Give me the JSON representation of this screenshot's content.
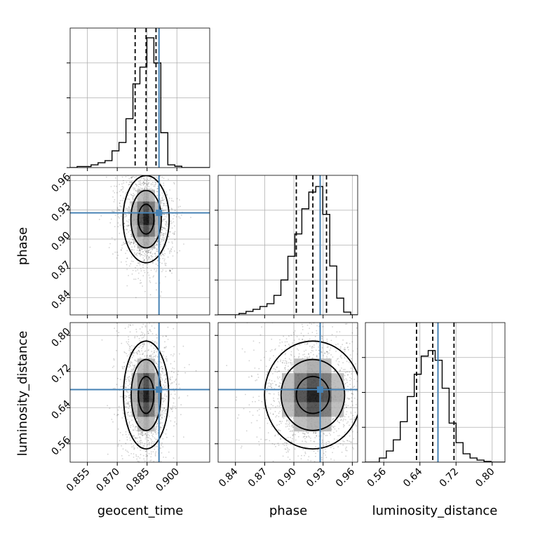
{
  "chart_data": {
    "type": "corner",
    "colors": {
      "line": "#000000",
      "truth": "#4682b4",
      "grid": "#b0b0b0"
    },
    "parameters": [
      "geocent_time",
      "phase",
      "luminosity_distance"
    ],
    "truths": {
      "geocent_time": 0.891,
      "phase": 0.927,
      "luminosity_distance": 0.68
    },
    "ranges": {
      "geocent_time": [
        0.8463,
        0.9165
      ],
      "phase": [
        0.8222,
        0.9655
      ],
      "luminosity_distance": [
        0.5193,
        0.8283
      ]
    },
    "ticks": {
      "geocent_time": {
        "values": [
          0.855,
          0.87,
          0.885,
          0.9
        ],
        "labels": [
          "0.855",
          "0.870",
          "0.885",
          "0.900"
        ]
      },
      "phase": {
        "values": [
          0.84,
          0.87,
          0.9,
          0.93,
          0.96
        ],
        "labels": [
          "0.84",
          "0.87",
          "0.90",
          "0.93",
          "0.96"
        ]
      },
      "luminosity_distance": {
        "values": [
          0.56,
          0.64,
          0.72,
          0.8
        ],
        "labels": [
          "0.56",
          "0.64",
          "0.72",
          "0.80"
        ]
      }
    },
    "quantiles": {
      "geocent_time": [
        0.879,
        0.8845,
        0.8895
      ],
      "phase": [
        0.9025,
        0.9195,
        0.9335
      ],
      "luminosity_distance": [
        0.6325,
        0.6685,
        0.7155
      ]
    },
    "histograms": {
      "geocent_time": [
        0,
        0.008,
        0.008,
        0.02,
        0.035,
        0.05,
        0.12,
        0.18,
        0.35,
        0.6,
        0.72,
        0.93,
        0.75,
        0.25,
        0.02,
        0.01,
        0,
        0,
        0,
        0
      ],
      "phase": [
        0,
        0,
        0,
        0.01,
        0.025,
        0.04,
        0.06,
        0.08,
        0.14,
        0.25,
        0.42,
        0.58,
        0.76,
        0.88,
        0.92,
        0.72,
        0.35,
        0.12,
        0.02,
        0
      ],
      "luminosity_distance": [
        0,
        0,
        0.03,
        0.08,
        0.16,
        0.29,
        0.47,
        0.63,
        0.76,
        0.8,
        0.73,
        0.53,
        0.28,
        0.14,
        0.06,
        0.03,
        0.015,
        0.005,
        0,
        0
      ]
    },
    "densities": [
      {
        "x": "geocent_time",
        "y": "phase",
        "center": [
          0.8845,
          0.9205
        ],
        "sigma": [
          0.0048,
          0.0195
        ],
        "rho": 0.08
      },
      {
        "x": "geocent_time",
        "y": "luminosity_distance",
        "center": [
          0.8845,
          0.668
        ],
        "sigma": [
          0.0047,
          0.052
        ],
        "rho": 0.02
      },
      {
        "x": "phase",
        "y": "luminosity_distance",
        "center": [
          0.9195,
          0.668
        ],
        "sigma": [
          0.0205,
          0.052
        ],
        "rho": 0.03
      }
    ]
  }
}
